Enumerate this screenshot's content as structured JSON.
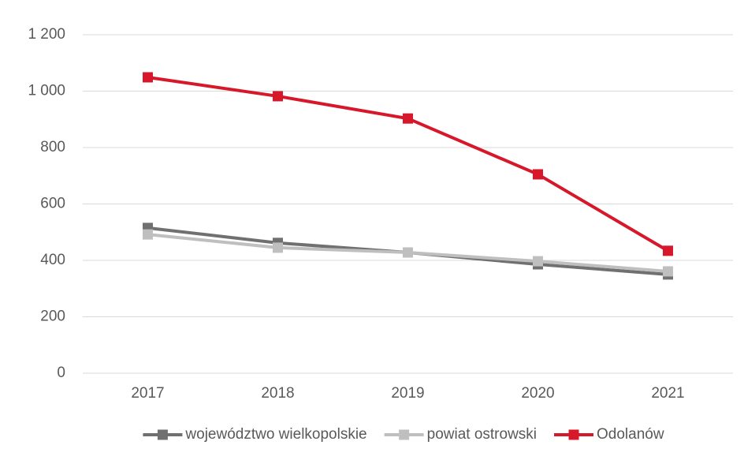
{
  "chart_data": {
    "type": "line",
    "categories": [
      "2017",
      "2018",
      "2019",
      "2020",
      "2021"
    ],
    "series": [
      {
        "name": "województwo wielkopolskie",
        "color": "#707070",
        "values": [
          515,
          462,
          428,
          386,
          350
        ]
      },
      {
        "name": "powiat ostrowski",
        "color": "#bfbfbf",
        "values": [
          492,
          445,
          428,
          397,
          361
        ]
      },
      {
        "name": "Odolanów",
        "color": "#d7182a",
        "values": [
          1049,
          982,
          903,
          705,
          434
        ]
      }
    ],
    "ylim": [
      0,
      1200
    ],
    "yticks": [
      0,
      200,
      400,
      600,
      800,
      {
        "value": 1000,
        "label": "1 000"
      },
      {
        "value": 1200,
        "label": "1 200"
      }
    ],
    "grid": true,
    "legend": "bottom"
  }
}
